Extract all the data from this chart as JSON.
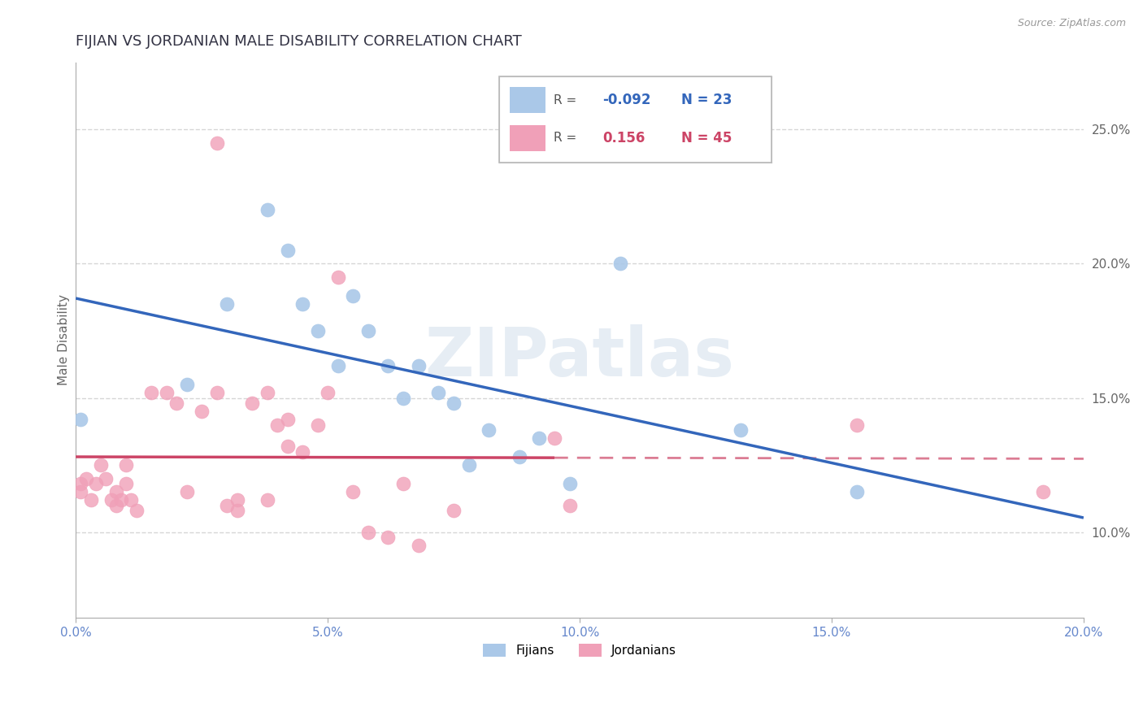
{
  "title": "FIJIAN VS JORDANIAN MALE DISABILITY CORRELATION CHART",
  "ylabel": "Male Disability",
  "source": "Source: ZipAtlas.com",
  "watermark": "ZIPatlas",
  "xlim": [
    0.0,
    0.2
  ],
  "ylim": [
    0.068,
    0.275
  ],
  "xticks": [
    0.0,
    0.05,
    0.1,
    0.15,
    0.2
  ],
  "yticks_right": [
    0.1,
    0.15,
    0.2,
    0.25
  ],
  "fijian_color": "#aac8e8",
  "jordanian_color": "#f0a0b8",
  "fijian_line_color": "#3366bb",
  "jordanian_line_color": "#cc4466",
  "fijian_R": -0.092,
  "fijian_N": 23,
  "jordanian_R": 0.156,
  "jordanian_N": 45,
  "fijian_x": [
    0.001,
    0.022,
    0.03,
    0.038,
    0.042,
    0.045,
    0.048,
    0.052,
    0.055,
    0.058,
    0.062,
    0.065,
    0.068,
    0.072,
    0.075,
    0.078,
    0.082,
    0.088,
    0.092,
    0.098,
    0.108,
    0.132,
    0.155
  ],
  "fijian_y": [
    0.142,
    0.155,
    0.185,
    0.22,
    0.205,
    0.185,
    0.175,
    0.162,
    0.188,
    0.175,
    0.162,
    0.15,
    0.162,
    0.152,
    0.148,
    0.125,
    0.138,
    0.128,
    0.135,
    0.118,
    0.2,
    0.138,
    0.115
  ],
  "jordanian_x": [
    0.001,
    0.001,
    0.002,
    0.003,
    0.004,
    0.005,
    0.006,
    0.007,
    0.008,
    0.008,
    0.009,
    0.01,
    0.01,
    0.011,
    0.012,
    0.015,
    0.018,
    0.02,
    0.022,
    0.025,
    0.028,
    0.028,
    0.03,
    0.032,
    0.032,
    0.035,
    0.038,
    0.038,
    0.04,
    0.042,
    0.042,
    0.045,
    0.048,
    0.05,
    0.052,
    0.055,
    0.058,
    0.062,
    0.065,
    0.068,
    0.075,
    0.095,
    0.098,
    0.155,
    0.192
  ],
  "jordanian_y": [
    0.118,
    0.115,
    0.12,
    0.112,
    0.118,
    0.125,
    0.12,
    0.112,
    0.11,
    0.115,
    0.112,
    0.125,
    0.118,
    0.112,
    0.108,
    0.152,
    0.152,
    0.148,
    0.115,
    0.145,
    0.245,
    0.152,
    0.11,
    0.112,
    0.108,
    0.148,
    0.152,
    0.112,
    0.14,
    0.142,
    0.132,
    0.13,
    0.14,
    0.152,
    0.195,
    0.115,
    0.1,
    0.098,
    0.118,
    0.095,
    0.108,
    0.135,
    0.11,
    0.14,
    0.115
  ],
  "background_color": "#ffffff",
  "grid_color": "#cccccc",
  "title_color": "#333344",
  "title_fontsize": 13,
  "axis_label_color": "#666666",
  "tick_color_x": "#6688cc",
  "tick_color_right": "#666666",
  "legend_fijian_label": "R = -0.092   N = 23",
  "legend_jordanian_label": "R =  0.156   N = 45",
  "bottom_legend_fijians": "Fijians",
  "bottom_legend_jordanians": "Jordanians"
}
